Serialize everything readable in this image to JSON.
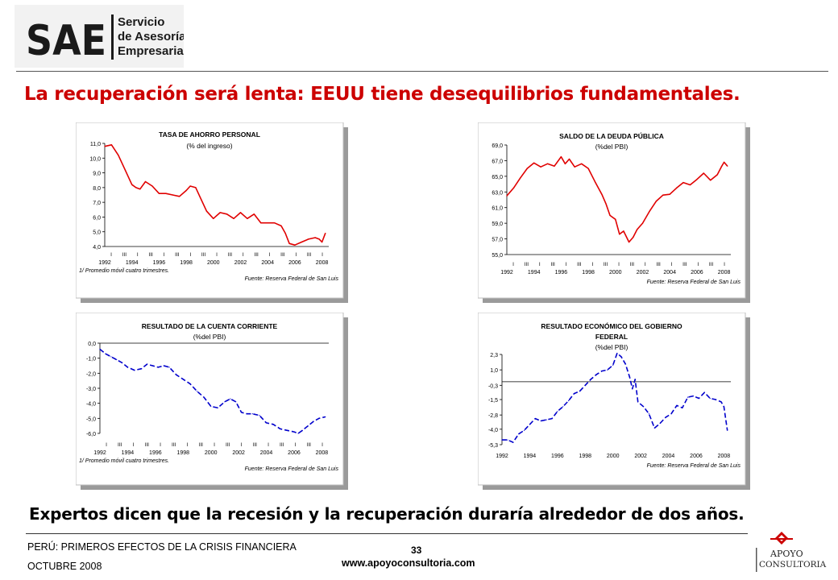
{
  "header": {
    "logo_mark": "SAE",
    "logo_line1": "Servicio",
    "logo_line2": "de Asesoría",
    "logo_line3": "Empresarial",
    "headline": "La recuperación será lenta: EEUU tiene desequilibrios fundamentales."
  },
  "colors": {
    "headline": "#cc0000",
    "red_series": "#e00000",
    "blue_series": "#0000cc"
  },
  "charts": [
    {
      "id": "ahorro",
      "title_line1": "TASA DE AHORRO PERSONAL",
      "title_line2": "(% del ingreso)",
      "title_line3": "",
      "footnote": "1/ Promedio móvil cuatro trimestres.",
      "source": "Fuente: Reserva Federal de San Luis",
      "year_labels": [
        "1992",
        "1994",
        "1996",
        "1998",
        "2000",
        "2002",
        "2004",
        "2006",
        "2008"
      ],
      "quarter_marks": [
        "I",
        "III",
        "I",
        "III",
        "I",
        "III",
        "I",
        "III",
        "I",
        "III",
        "I",
        "III",
        "I",
        "III",
        "I",
        "III",
        "I"
      ]
    },
    {
      "id": "deuda",
      "title_line1": "SALDO DE LA DEUDA PÚBLICA",
      "title_line2": "(%del PBI)",
      "title_line3": "",
      "footnote": "",
      "source": "Fuente: Reserva Federal de San Luis",
      "year_labels": [
        "1992",
        "1994",
        "1996",
        "1998",
        "2000",
        "2002",
        "2004",
        "2006",
        "2008"
      ],
      "quarter_marks": [
        "I",
        "III",
        "I",
        "III",
        "I",
        "III",
        "I",
        "III",
        "I",
        "III",
        "I",
        "III",
        "I",
        "III",
        "I",
        "III",
        "I"
      ]
    },
    {
      "id": "cuenta",
      "title_line1": "RESULTADO DE LA CUENTA CORRIENTE",
      "title_line2": "(%del PBI)",
      "title_line3": "",
      "footnote": "1/ Promedio móvil cuatro trimestres.",
      "source": "Fuente: Reserva Federal de San Luis",
      "year_labels": [
        "1992",
        "1994",
        "1996",
        "1998",
        "2000",
        "2002",
        "2004",
        "2006",
        "2008"
      ],
      "quarter_marks": [
        "I",
        "III",
        "I",
        "III",
        "I",
        "III",
        "I",
        "III",
        "I",
        "III",
        "I",
        "III",
        "I",
        "III",
        "I",
        "III",
        "I"
      ]
    },
    {
      "id": "fiscal",
      "title_line1": "RESULTADO ECONÓMICO DEL GOBIERNO",
      "title_line2": "FEDERAL",
      "title_line3": "(%del PBI)",
      "footnote": "",
      "source": "Fuente: Reserva Federal de San Luis",
      "year_labels": [
        "1992",
        "1994",
        "1996",
        "1998",
        "2000",
        "2002",
        "2004",
        "2006",
        "2008"
      ],
      "quarter_marks": []
    }
  ],
  "chart_data": [
    {
      "type": "line",
      "title": "TASA DE AHORRO PERSONAL",
      "ylabel": "(% del ingreso)",
      "ylim": [
        4.0,
        11.0
      ],
      "yticks": [
        "11,0",
        "10,0",
        "9,0",
        "8,0",
        "7,0",
        "6,0",
        "5,0",
        "4,0"
      ],
      "ytick_values": [
        11,
        10,
        9,
        8,
        7,
        6,
        5,
        4
      ],
      "xlim": [
        1992,
        2008.5
      ],
      "line_style": "solid",
      "color": "#e00000",
      "series": [
        {
          "x": [
            1992.0,
            1992.5,
            1993.0,
            1993.5,
            1994.0,
            1994.3,
            1994.6,
            1995.0,
            1995.5,
            1996.0,
            1996.5,
            1997.0,
            1997.5,
            1998.0,
            1998.3,
            1998.7,
            1999.0,
            1999.5,
            2000.0,
            2000.5,
            2001.0,
            2001.5,
            2002.0,
            2002.5,
            2003.0,
            2003.5,
            2004.0,
            2004.5,
            2005.0,
            2005.3,
            2005.6,
            2006.0,
            2006.5,
            2007.0,
            2007.5,
            2007.8,
            2008.0,
            2008.25
          ],
          "y": [
            10.8,
            10.9,
            10.2,
            9.2,
            8.2,
            8.0,
            7.9,
            8.4,
            8.1,
            7.6,
            7.6,
            7.5,
            7.4,
            7.8,
            8.1,
            8.0,
            7.4,
            6.4,
            5.9,
            6.3,
            6.2,
            5.9,
            6.3,
            5.9,
            6.2,
            5.6,
            5.6,
            5.6,
            5.4,
            4.9,
            4.2,
            4.1,
            4.3,
            4.5,
            4.6,
            4.5,
            4.3,
            4.9
          ]
        }
      ]
    },
    {
      "type": "line",
      "title": "SALDO DE LA DEUDA PÚBLICA",
      "ylabel": "(%del PBI)",
      "ylim": [
        55.0,
        69.0
      ],
      "yticks": [
        "69,0",
        "67,0",
        "65,0",
        "63,0",
        "61,0",
        "59,0",
        "57,0",
        "55,0"
      ],
      "ytick_values": [
        69,
        67,
        65,
        63,
        61,
        59,
        57,
        55
      ],
      "xlim": [
        1992,
        2008.5
      ],
      "line_style": "solid",
      "color": "#e00000",
      "series": [
        {
          "x": [
            1992.0,
            1992.5,
            1993.0,
            1993.5,
            1994.0,
            1994.5,
            1995.0,
            1995.5,
            1996.0,
            1996.3,
            1996.6,
            1997.0,
            1997.5,
            1998.0,
            1998.5,
            1999.0,
            1999.3,
            1999.6,
            2000.0,
            2000.3,
            2000.6,
            2001.0,
            2001.3,
            2001.6,
            2002.0,
            2002.5,
            2003.0,
            2003.5,
            2004.0,
            2004.5,
            2005.0,
            2005.5,
            2006.0,
            2006.5,
            2007.0,
            2007.5,
            2007.8,
            2008.0,
            2008.25
          ],
          "y": [
            62.5,
            63.5,
            64.8,
            66.0,
            66.7,
            66.2,
            66.6,
            66.3,
            67.5,
            66.6,
            67.2,
            66.2,
            66.6,
            66.0,
            64.3,
            62.7,
            61.5,
            60.0,
            59.5,
            57.6,
            58.0,
            56.6,
            57.2,
            58.2,
            59.0,
            60.5,
            61.8,
            62.6,
            62.7,
            63.5,
            64.2,
            63.9,
            64.6,
            65.4,
            64.5,
            65.2,
            66.2,
            66.8,
            66.3
          ]
        }
      ]
    },
    {
      "type": "line",
      "title": "RESULTADO DE LA CUENTA CORRIENTE",
      "ylabel": "(%del PBI)",
      "ylim": [
        -6.0,
        0.0
      ],
      "yticks": [
        "0,0",
        "-1,0",
        "-2,0",
        "-3,0",
        "-4,0",
        "-5,0",
        "-6,0"
      ],
      "ytick_values": [
        0,
        -1,
        -2,
        -3,
        -4,
        -5,
        -6
      ],
      "xlim": [
        1992,
        2008.5
      ],
      "line_style": "dashed",
      "color": "#0000cc",
      "series": [
        {
          "x": [
            1992.0,
            1992.4,
            1992.8,
            1993.2,
            1993.6,
            1994.0,
            1994.5,
            1995.0,
            1995.4,
            1995.8,
            1996.2,
            1996.6,
            1997.0,
            1997.5,
            1998.0,
            1998.5,
            1999.0,
            1999.5,
            2000.0,
            2000.5,
            2001.0,
            2001.4,
            2001.8,
            2002.2,
            2002.6,
            2003.0,
            2003.5,
            2004.0,
            2004.5,
            2005.0,
            2005.5,
            2006.0,
            2006.3,
            2006.6,
            2007.0,
            2007.4,
            2007.8,
            2008.25
          ],
          "y": [
            -0.4,
            -0.7,
            -0.9,
            -1.1,
            -1.3,
            -1.6,
            -1.8,
            -1.7,
            -1.4,
            -1.5,
            -1.6,
            -1.5,
            -1.6,
            -2.1,
            -2.4,
            -2.7,
            -3.2,
            -3.6,
            -4.2,
            -4.3,
            -3.9,
            -3.7,
            -3.9,
            -4.6,
            -4.7,
            -4.7,
            -4.8,
            -5.3,
            -5.4,
            -5.7,
            -5.8,
            -5.9,
            -6.0,
            -5.8,
            -5.5,
            -5.2,
            -5.0,
            -4.9
          ]
        }
      ]
    },
    {
      "type": "line",
      "title": "RESULTADO ECONÓMICO DEL GOBIERNO FEDERAL",
      "ylabel": "(%del PBI)",
      "ylim": [
        -5.3,
        2.3
      ],
      "yticks": [
        "2,3",
        "1,0",
        "-0,3",
        "-1,5",
        "-2,8",
        "-4,0",
        "-5,3"
      ],
      "ytick_values": [
        2.3,
        1.0,
        -0.3,
        -1.5,
        -2.8,
        -4.0,
        -5.3
      ],
      "xlim": [
        1992,
        2008.5
      ],
      "line_style": "dashed",
      "color": "#0000cc",
      "series": [
        {
          "x": [
            1992.0,
            1992.4,
            1992.8,
            1993.2,
            1993.6,
            1994.0,
            1994.4,
            1994.8,
            1995.2,
            1995.6,
            1996.0,
            1996.4,
            1996.8,
            1997.2,
            1997.6,
            1998.0,
            1998.4,
            1998.8,
            1999.2,
            1999.6,
            2000.0,
            2000.3,
            2000.6,
            2000.9,
            2001.2,
            2001.4,
            2001.6,
            2001.8,
            2002.2,
            2002.6,
            2003.0,
            2003.4,
            2003.8,
            2004.2,
            2004.6,
            2005.0,
            2005.4,
            2005.8,
            2006.2,
            2006.6,
            2007.0,
            2007.4,
            2007.8,
            2008.0,
            2008.25
          ],
          "y": [
            -4.9,
            -4.9,
            -5.1,
            -4.4,
            -4.1,
            -3.6,
            -3.1,
            -3.3,
            -3.2,
            -3.1,
            -2.5,
            -2.1,
            -1.6,
            -1.0,
            -0.8,
            -0.3,
            0.2,
            0.6,
            0.9,
            1.0,
            1.4,
            2.4,
            2.1,
            1.5,
            0.4,
            -0.6,
            0.2,
            -1.7,
            -2.1,
            -2.7,
            -3.9,
            -3.5,
            -3.0,
            -2.7,
            -2.0,
            -2.2,
            -1.3,
            -1.2,
            -1.4,
            -0.9,
            -1.4,
            -1.5,
            -1.7,
            -2.1,
            -4.1
          ]
        }
      ]
    }
  ],
  "main": {
    "subheadline": "Expertos dicen que la recesión y la recuperación duraría alrededor de dos años."
  },
  "footer": {
    "line1": "PERÚ: PRIMEROS EFECTOS DE LA CRISIS FINANCIERA",
    "line2": "OCTUBRE 2008",
    "page_number": "33",
    "website": "www.apoyoconsultoria.com",
    "apoyo_line1": "APOYO",
    "apoyo_line2": "CONSULTORIA"
  }
}
